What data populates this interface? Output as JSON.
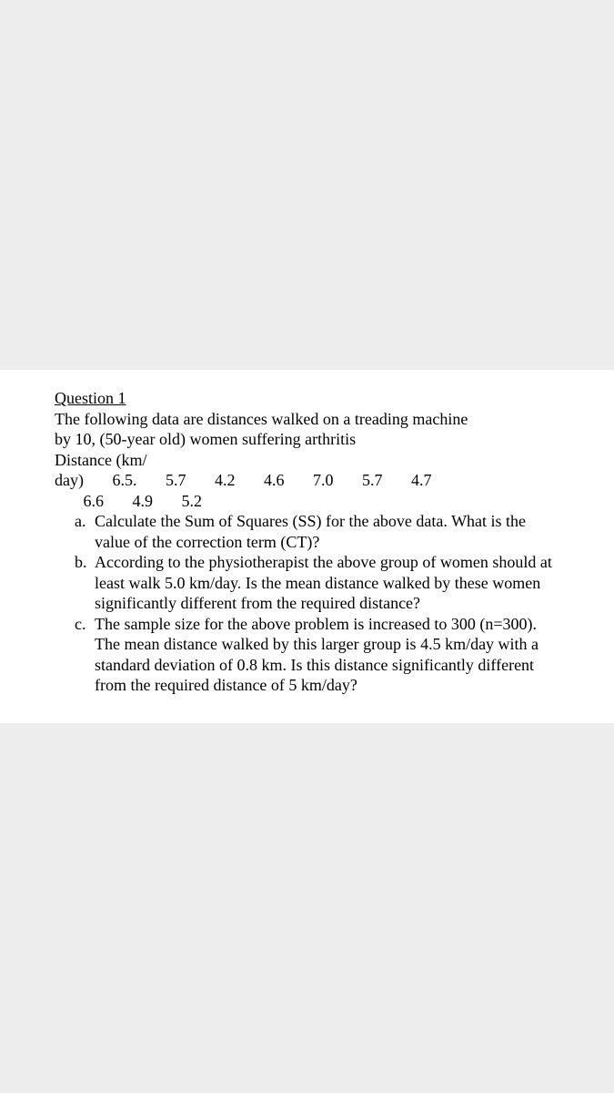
{
  "document": {
    "background_color": "#ededed",
    "card_background": "#ffffff",
    "text_color": "#000000",
    "font_family": "Times New Roman",
    "heading": "Question 1",
    "intro_line1": "The following data are distances walked on a treading machine",
    "intro_line2": "by 10, (50-year old) women suffering arthritis",
    "intro_line3": "Distance (km/",
    "data_line1": "day)       6.5.       5.7       4.2       4.6       7.0       5.7       4.7",
    "data_line2": "       6.6       4.9       5.2",
    "items": [
      {
        "marker": "a.",
        "text": "Calculate the Sum of Squares (SS) for the above data. What is the value of the correction term (CT)?"
      },
      {
        "marker": "b.",
        "text_pre": "According to the physiotherapist the above group of women should at least walk 5.0 km/day",
        "dot": ".",
        "text_post": " Is the mean distance walked by these women significantly different from the required distance?"
      },
      {
        "marker": "c.",
        "text": "The sample size for the above problem is increased to 300 (n=300). The mean distance walked by this larger group is 4.5 km/day with a standard deviation of 0.8 km. Is this distance significantly different from the required distance of 5 km/day?"
      }
    ]
  }
}
